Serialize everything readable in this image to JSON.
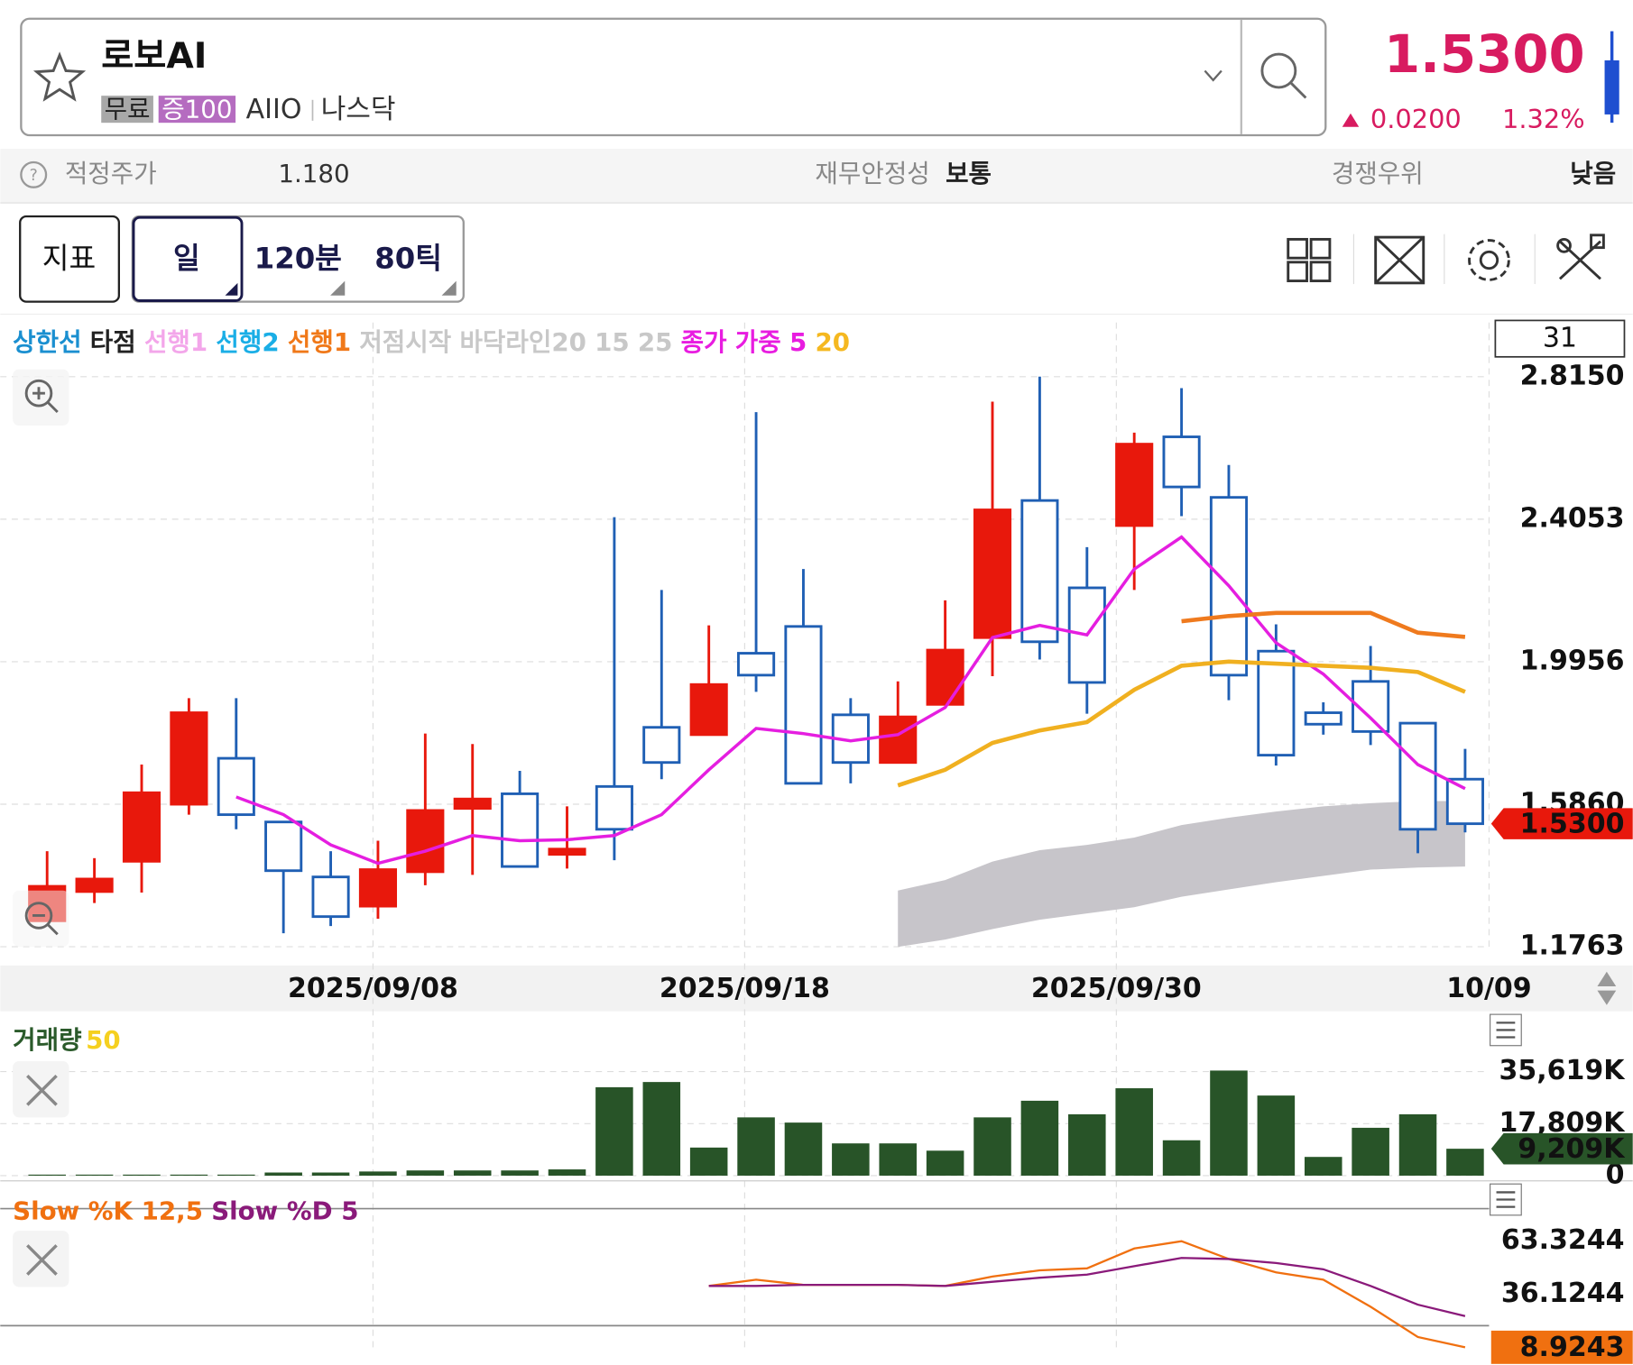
{
  "header": {
    "title": "로보AI",
    "tags": [
      "무료",
      "증100"
    ],
    "ticker": "AIIO",
    "exchange": "나스닥",
    "price": "1.5300",
    "change": "0.0200",
    "change_pct": "1.32%"
  },
  "info": {
    "fair_price_label": "적정주가",
    "fair_price": "1.180",
    "stability_label": "재무안정성",
    "stability": "보통",
    "advantage_label": "경쟁우위",
    "advantage": "낮음"
  },
  "toolbar": {
    "buttons": [
      "지표",
      "일",
      "120분",
      "80틱"
    ]
  },
  "chart_data": [
    {
      "type": "candlestick",
      "legend": [
        {
          "text": "상한선",
          "color": "#1a8fd0"
        },
        {
          "text": "타점",
          "color": "#222222"
        },
        {
          "text": "선행1",
          "color": "#f3a6ea"
        },
        {
          "text": "선행2",
          "color": "#1aaee6"
        },
        {
          "text": "선행1",
          "color": "#f07818"
        },
        {
          "text": "저점시작",
          "color": "#c8c8c8"
        },
        {
          "text": "바닥라인20",
          "color": "#c8c8c8"
        },
        {
          "text": "15",
          "color": "#c8c8c8"
        },
        {
          "text": "25",
          "color": "#c8c8c8"
        },
        {
          "text": "종가",
          "color": "#e81ce0"
        },
        {
          "text": "가중",
          "color": "#e81ce0"
        },
        {
          "text": "5",
          "color": "#e81ce0"
        },
        {
          "text": "20",
          "color": "#f5b820"
        }
      ],
      "x_labels": [
        "2025/09/08",
        "2025/09/18",
        "2025/09/30",
        "10/09"
      ],
      "open": [
        1.251,
        1.335,
        1.422,
        1.586,
        1.718,
        1.535,
        1.377,
        1.293,
        1.392,
        1.574,
        1.616,
        1.442,
        1.637,
        1.807,
        1.786,
        2.02,
        2.097,
        1.843,
        1.706,
        1.873,
        2.065,
        2.459,
        2.208,
        2.387,
        2.642,
        2.468,
        2.026,
        1.849,
        1.939,
        1.819,
        1.658
      ],
      "high": [
        1.451,
        1.431,
        1.7,
        1.891,
        1.891,
        1.535,
        1.451,
        1.481,
        1.789,
        1.759,
        1.682,
        1.58,
        2.411,
        2.202,
        2.1,
        2.713,
        2.262,
        1.891,
        1.939,
        2.172,
        2.743,
        2.815,
        2.325,
        2.654,
        2.782,
        2.561,
        2.103,
        1.879,
        2.041,
        1.819,
        1.745
      ],
      "low": [
        1.251,
        1.302,
        1.332,
        1.556,
        1.514,
        1.215,
        1.236,
        1.257,
        1.353,
        1.383,
        1.407,
        1.401,
        1.425,
        1.658,
        1.786,
        1.909,
        1.646,
        1.646,
        1.706,
        1.873,
        1.954,
        2.002,
        1.846,
        2.202,
        2.414,
        1.885,
        1.697,
        1.786,
        1.756,
        1.445,
        1.505
      ],
      "close": [
        1.35,
        1.371,
        1.619,
        1.849,
        1.556,
        1.395,
        1.263,
        1.398,
        1.568,
        1.601,
        1.407,
        1.457,
        1.514,
        1.706,
        1.93,
        1.957,
        1.646,
        1.706,
        1.837,
        2.029,
        2.432,
        2.053,
        1.936,
        2.621,
        2.498,
        1.957,
        1.727,
        1.816,
        1.795,
        1.514,
        1.53
      ],
      "up_color": "#e8180c",
      "down_color": "#1f5fb4",
      "lines": [
        {
          "color": "#e51ee0",
          "values": [
            null,
            null,
            null,
            null,
            1.607,
            1.556,
            1.469,
            1.416,
            1.451,
            1.496,
            1.481,
            1.484,
            1.496,
            1.556,
            1.685,
            1.804,
            1.789,
            1.768,
            1.786,
            1.864,
            2.065,
            2.1,
            2.073,
            2.262,
            2.354,
            2.214,
            2.05,
            1.96,
            1.834,
            1.7,
            1.631
          ]
        },
        {
          "color": "#f0b020",
          "values": [
            null,
            null,
            null,
            null,
            null,
            null,
            null,
            null,
            null,
            null,
            null,
            null,
            null,
            null,
            null,
            null,
            null,
            null,
            1.64,
            1.685,
            1.762,
            1.798,
            1.822,
            1.915,
            1.984,
            1.996,
            1.99,
            1.984,
            1.978,
            1.966,
            1.909
          ]
        },
        {
          "color": "#ef7a1e",
          "values": [
            null,
            null,
            null,
            null,
            null,
            null,
            null,
            null,
            null,
            null,
            null,
            null,
            null,
            null,
            null,
            null,
            null,
            null,
            null,
            null,
            null,
            null,
            null,
            null,
            2.112,
            2.127,
            2.136,
            2.136,
            2.136,
            2.079,
            2.067
          ]
        }
      ],
      "band": {
        "color": "#c7c5ca",
        "upper": [
          null,
          null,
          null,
          null,
          null,
          null,
          null,
          null,
          null,
          null,
          null,
          null,
          null,
          null,
          null,
          null,
          null,
          null,
          1.338,
          1.368,
          1.421,
          1.454,
          1.469,
          1.49,
          1.526,
          1.547,
          1.565,
          1.58,
          1.589,
          1.595,
          1.595
        ],
        "lower": [
          null,
          null,
          null,
          null,
          null,
          null,
          null,
          null,
          null,
          null,
          null,
          null,
          null,
          null,
          null,
          null,
          null,
          null,
          1.176,
          1.197,
          1.227,
          1.254,
          1.272,
          1.29,
          1.32,
          1.341,
          1.362,
          1.38,
          1.398,
          1.404,
          1.407
        ]
      },
      "ylim": [
        1.1763,
        2.9706
      ],
      "yticks": [
        1.1763,
        {
          "value": 1.586,
          "label": "1.5860"
        },
        1.9956,
        2.4053,
        {
          "value": 2.815,
          "label": "2.8150"
        }
      ],
      "grid": true,
      "last_value": {
        "value": 1.53,
        "label": "1.5300"
      },
      "count": "31"
    },
    {
      "type": "bar",
      "legend": [
        {
          "text": "거래량",
          "color": "#2a5a2a"
        },
        {
          "text": "50",
          "color": "#f5d020"
        }
      ],
      "values": [
        356,
        356,
        356,
        356,
        356,
        1069,
        1069,
        1425,
        1781,
        1781,
        1781,
        2137,
        30276,
        32057,
        9617,
        19947,
        18166,
        11042,
        11042,
        8549,
        19947,
        25646,
        21015,
        29920,
        12110,
        35980,
        27427,
        6411,
        16385,
        21015,
        9209
      ],
      "color": "#285428",
      "ylim": [
        0,
        51650
      ],
      "yticks": [
        0,
        {
          "value": 17809,
          "label": "17,809K"
        },
        {
          "value": 35619,
          "label": "35,619K"
        }
      ],
      "grid": true,
      "last_value": {
        "value": 9209,
        "label": "9,209K"
      }
    },
    {
      "type": "line",
      "series": [
        {
          "name": "Slow %K 12,5",
          "color": "#f07010",
          "values": [
            null,
            null,
            null,
            null,
            null,
            null,
            null,
            null,
            null,
            null,
            null,
            null,
            null,
            null,
            40.4,
            43.6,
            40.9,
            40.9,
            40.9,
            40.4,
            45.2,
            48.4,
            49.4,
            59.6,
            63.3,
            54.2,
            47.3,
            43.6,
            29.7,
            14.2,
            8.9243
          ]
        },
        {
          "name": "Slow %D 5",
          "color": "#8a1a7a",
          "values": [
            null,
            null,
            null,
            null,
            null,
            null,
            null,
            null,
            null,
            null,
            null,
            null,
            null,
            null,
            40.4,
            40.4,
            40.9,
            40.9,
            40.9,
            40.4,
            42.5,
            44.6,
            46.2,
            50.5,
            54.7,
            54.2,
            52.1,
            48.9,
            40.4,
            30.8,
            24.9
          ]
        }
      ],
      "ylim": [
        0,
        100
      ],
      "yticks": [
        36.1244,
        63.3244
      ],
      "levels": [
        20,
        80
      ],
      "grid": true,
      "last_value": 8.9243
    }
  ]
}
